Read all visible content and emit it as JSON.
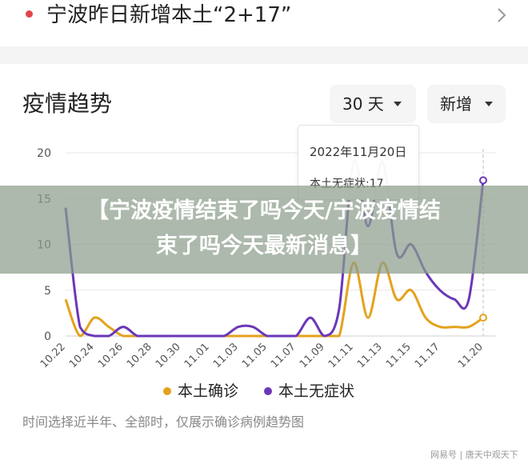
{
  "header": {
    "title": "宁波昨日新增本土“2+17”"
  },
  "section": {
    "title": "疫情趋势"
  },
  "selectors": {
    "range_label": "30 天",
    "type_label": "新增"
  },
  "tooltip": {
    "date": "2022年11月20日",
    "value_label": "本土无症状:17"
  },
  "legend": [
    {
      "label": "本土确诊",
      "color": "#e4a21c"
    },
    {
      "label": "本土无症状",
      "color": "#6a37b8"
    }
  ],
  "note": "时间选择近半年、全部时，仅展示确诊病例趋势图",
  "overlay": {
    "line1": "【宁波疫情结束了吗今天/宁波疫情结",
    "line2": "束了吗今天最新消息】"
  },
  "watermark": "网易号 | 唐天中观天下",
  "chart_data": {
    "type": "line",
    "x": [
      "10.22",
      "10.23",
      "10.24",
      "10.25",
      "10.26",
      "10.27",
      "10.28",
      "10.29",
      "10.30",
      "10.31",
      "11.01",
      "11.02",
      "11.03",
      "11.04",
      "11.05",
      "11.06",
      "11.07",
      "11.08",
      "11.09",
      "11.10",
      "11.11",
      "11.12",
      "11.13",
      "11.14",
      "11.15",
      "11.16",
      "11.17",
      "11.18",
      "11.19",
      "11.20"
    ],
    "xticks": [
      "10.22",
      "10.24",
      "10.26",
      "10.28",
      "10.30",
      "11.01",
      "11.03",
      "11.05",
      "11.07",
      "11.09",
      "11.11",
      "11.13",
      "11.15",
      "11.17",
      "11.20"
    ],
    "ylim": [
      0,
      20
    ],
    "yticks": [
      0,
      5,
      10,
      15,
      20
    ],
    "series": [
      {
        "name": "本土确诊",
        "color": "#e4a21c",
        "values": [
          4,
          0,
          2,
          1,
          0,
          0,
          0,
          0,
          0,
          0,
          0,
          0,
          0,
          0,
          0,
          0,
          0,
          0,
          0,
          0,
          8,
          2,
          8,
          4,
          5,
          2,
          1,
          1,
          1,
          2
        ]
      },
      {
        "name": "本土无症状",
        "color": "#6a37b8",
        "values": [
          14,
          1,
          0,
          0,
          1,
          0,
          0,
          0,
          0,
          0,
          0,
          0,
          1,
          1,
          0,
          0,
          0,
          2,
          0,
          3,
          19,
          12,
          19,
          9,
          10,
          7,
          5,
          4,
          4,
          17
        ]
      }
    ],
    "highlight_index": 29
  }
}
